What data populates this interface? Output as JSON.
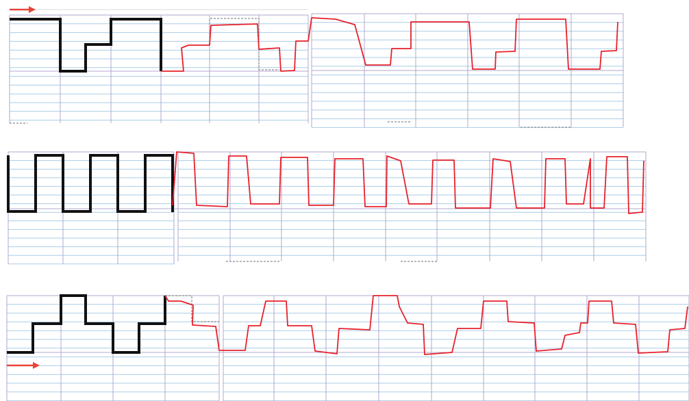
{
  "colors": {
    "background": "#ffffff",
    "hline": "#a9cbe6",
    "vline": "#b1a7cc",
    "model": "#111111",
    "trace": "#e8202a",
    "dashed": "#8a8a8a",
    "arrow": "#e8443a"
  },
  "icons": [
    "arrow-right-icon",
    "arrow-right-icon"
  ],
  "panels": [
    {
      "name": "row-1",
      "model_pattern": "high-low-mid-high",
      "arrow": "top-left",
      "trace_cycles": 4
    },
    {
      "name": "row-2",
      "model_pattern": "square-wave",
      "arrow": "none",
      "trace_cycles": 9
    },
    {
      "name": "row-3",
      "model_pattern": "low-mid-high-mid-low-mid-high",
      "arrow": "bottom-left",
      "trace_cycles": 5
    }
  ]
}
